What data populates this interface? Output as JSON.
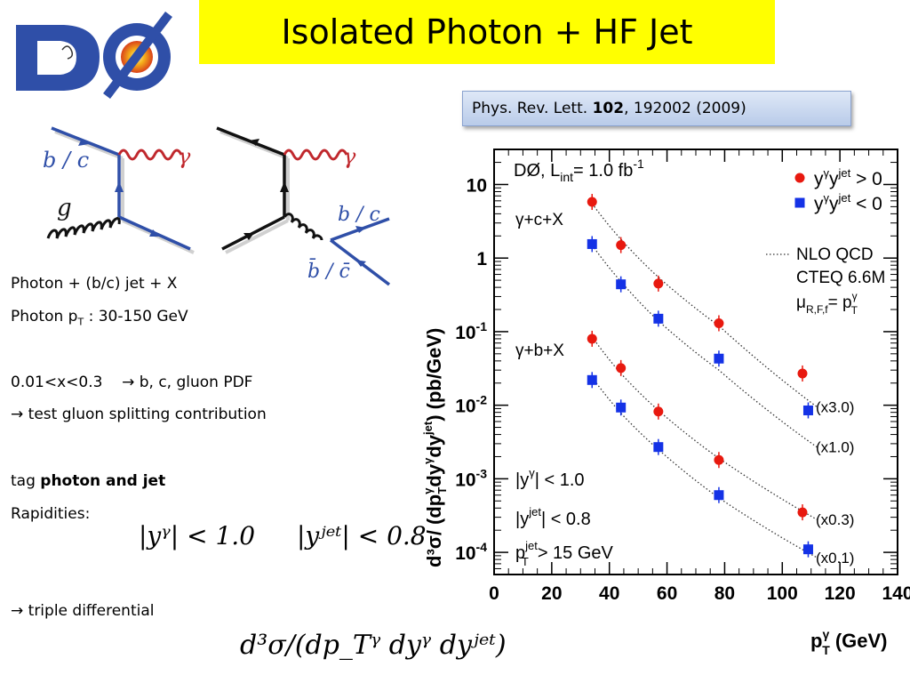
{
  "title": "Isolated Photon + HF Jet",
  "logo": {
    "text": "DØ",
    "color_blue": "#2f4fa8",
    "color_orange": "#f2a31b"
  },
  "reference": {
    "prefix": "Phys. Rev. Lett. ",
    "volume": "102",
    "suffix": ", 192002 (2009)"
  },
  "diagram": {
    "left": {
      "quark": "b / c",
      "photon": "γ",
      "gluon": "g"
    },
    "right": {
      "photon": "γ",
      "quark": "b / c",
      "antiquark": "b̄ / c̄"
    }
  },
  "bullets": {
    "l1": "Photon + (b/c) jet + X",
    "l2_pre": "Photon p",
    "l2_sub": "T",
    "l2_post": " : 30-150 GeV",
    "l3_pre": "0.01<x<0.3",
    "l3_post": "b, c, gluon PDF",
    "l4": "test gluon splitting contribution",
    "l5_pre": "tag ",
    "l5_bold": "photon and jet",
    "l6": "Rapidities:",
    "l7": "triple differential",
    "arrow": "→"
  },
  "formulas": {
    "rap1": "|yᵞ| < 1.0",
    "rap2": "|yʲᵉᵗ| < 0.8",
    "triple": "d³σ/(dp_Tᵞ dyᵞ dyʲᵉᵗ)"
  },
  "chart_data": {
    "type": "scatter",
    "xlim": [
      0,
      140
    ],
    "ylim": [
      5e-05,
      30
    ],
    "yscale": "log",
    "xticks": [
      "0",
      "20",
      "40",
      "60",
      "80",
      "100",
      "120",
      "140"
    ],
    "yticks": [
      "10",
      "1",
      "10-1",
      "10-2",
      "10-3",
      "10-4"
    ],
    "xlabel": "p_T^γ (GeV)",
    "ylabel": "d³σ/(dp_T^γ dy^γ dy^jet) (pb/GeV)",
    "experiment": "DØ,  L_int= 1.0 fb^-1",
    "legend": {
      "placement": "top-right",
      "same_sign": "y^γ y^jet > 0",
      "opposite_sign": "y^γ y^jet < 0",
      "theory": [
        "NLO QCD",
        "CTEQ 6.6M",
        "μ_R,F,f = p_T^γ"
      ]
    },
    "labels": [
      "γ+c+X",
      "γ+b+X"
    ],
    "cuts": [
      "|y^γ|  < 1.0",
      "|y^jet| < 0.8",
      "p_T^jet  > 15 GeV"
    ],
    "scale_factors": [
      "(x3.0)",
      "(x1.0)",
      "(x0.3)",
      "(x0.1)"
    ],
    "colors": {
      "red": "#e8190f",
      "blue": "#1432e6"
    },
    "series": [
      {
        "name": "γ+c+X, y^γ y^jet > 0 (x3.0)",
        "marker": "circle",
        "color": "#e8190f",
        "x": [
          34,
          44,
          57,
          78,
          107
        ],
        "y": [
          5.8,
          1.5,
          0.45,
          0.13,
          0.027
        ]
      },
      {
        "name": "γ+c+X, y^γ y^jet < 0 (x1.0)",
        "marker": "square",
        "color": "#1432e6",
        "x": [
          34,
          44,
          57,
          78,
          109
        ],
        "y": [
          1.55,
          0.44,
          0.15,
          0.043,
          0.0085
        ]
      },
      {
        "name": "γ+b+X, y^γ y^jet > 0 (x0.3)",
        "marker": "circle",
        "color": "#e8190f",
        "x": [
          34,
          44,
          57,
          78,
          107
        ],
        "y": [
          0.08,
          0.032,
          0.0082,
          0.0018,
          0.00035
        ]
      },
      {
        "name": "γ+b+X, y^γ y^jet < 0 (x0.1)",
        "marker": "square",
        "color": "#1432e6",
        "x": [
          34,
          44,
          57,
          78,
          109
        ],
        "y": [
          0.022,
          0.0093,
          0.0027,
          0.0006,
          0.00011
        ]
      }
    ],
    "curves": [
      {
        "x": [
          34,
          44,
          57,
          78,
          112
        ],
        "y": [
          5.5,
          1.8,
          0.55,
          0.12,
          0.0095
        ]
      },
      {
        "x": [
          34,
          44,
          57,
          78,
          112
        ],
        "y": [
          1.5,
          0.48,
          0.14,
          0.03,
          0.0027
        ]
      },
      {
        "x": [
          34,
          44,
          57,
          78,
          112
        ],
        "y": [
          0.085,
          0.027,
          0.0085,
          0.0019,
          0.00028
        ]
      },
      {
        "x": [
          34,
          44,
          57,
          78,
          112
        ],
        "y": [
          0.024,
          0.0078,
          0.0025,
          0.00055,
          8.5e-05
        ]
      }
    ]
  }
}
